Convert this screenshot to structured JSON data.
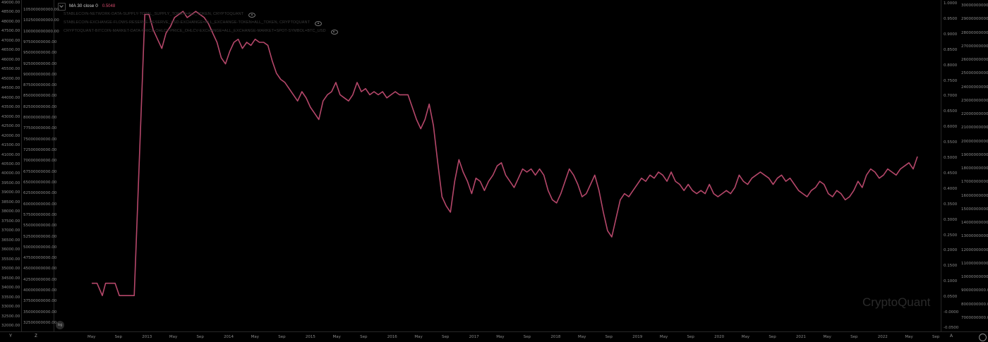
{
  "legend": {
    "main_label": "MA 30 close 0",
    "main_value": "0.5048",
    "series_2": "STABLECOIN-NETWORK-DATA-SUPPLY-TOTAL_SUPPLY_TOKEN=ALL_TOKEN, CRYPTOQUANT",
    "series_3": "STABLECOIN-EXCHANGE-FLOWS-RESERVE-RESERVE_USD-EXCHANGE=ALL_EXCHANGE-TOKEN=ALL_TOKEN, CRYPTOQUANT",
    "series_4": "CRYPTOQUANT-BITCOIN-MARKET-DATA-PRICE-OHLCV-PRICE_OHLCV-EXCHANGE=ALL_EXCHANGE-MARKET=SPOT-SYMBOL=BTC_USD"
  },
  "watermark": "CryptoQuant",
  "bottom": {
    "left_btn": "Y",
    "mid_btn": "Z",
    "right_btn": "A"
  },
  "scale_button": "log",
  "colors": {
    "line": "#b5476a",
    "background": "#000000",
    "legend_value": "#d04a6a"
  },
  "chart_data": {
    "type": "line",
    "title": "",
    "ylim": [
      -0.05,
      1.0
    ],
    "x_tick_labels": [
      "May",
      "Sep",
      "2013",
      "May",
      "Sep",
      "2014",
      "May",
      "Sep",
      "2015",
      "May",
      "Sep",
      "2016",
      "May",
      "Sep",
      "2017",
      "May",
      "Sep",
      "2018",
      "May",
      "Sep",
      "2019",
      "May",
      "Sep",
      "2020",
      "May",
      "Sep",
      "2021",
      "May",
      "Sep",
      "2022",
      "May",
      "Sep"
    ],
    "y_left1_ticks": [
      "49000.00",
      "48500.00",
      "48000.00",
      "47500.00",
      "47000.00",
      "46500.00",
      "46000.00",
      "45500.00",
      "45000.00",
      "44500.00",
      "44000.00",
      "43500.00",
      "43000.00",
      "42500.00",
      "42000.00",
      "41500.00",
      "41000.00",
      "40500.00",
      "40000.00",
      "39500.00",
      "39000.00",
      "38500.00",
      "38000.00",
      "37500.00",
      "37000.00",
      "36500.00",
      "36000.00",
      "35500.00",
      "35000.00",
      "34500.00",
      "34000.00",
      "33500.00",
      "33000.00",
      "32500.00",
      "32000.00"
    ],
    "y_left2_ticks": [
      "105000000000.00",
      "102500000000.00",
      "100000000000.00",
      "97500000000.00",
      "95000000000.00",
      "92500000000.00",
      "90000000000.00",
      "87500000000.00",
      "85000000000.00",
      "82500000000.00",
      "80000000000.00",
      "77500000000.00",
      "75000000000.00",
      "72500000000.00",
      "70000000000.00",
      "67500000000.00",
      "65000000000.00",
      "62500000000.00",
      "60000000000.00",
      "57500000000.00",
      "55000000000.00",
      "52500000000.00",
      "50000000000.00",
      "47500000000.00",
      "45000000000.00",
      "42500000000.00",
      "40000000000.00",
      "37500000000.00",
      "35000000000.00",
      "32500000000.00"
    ],
    "y_right1_ticks": [
      "1.0000",
      "0.9500",
      "0.9000",
      "0.8500",
      "0.8000",
      "0.7500",
      "0.7000",
      "0.6500",
      "0.6000",
      "0.5500",
      "0.5000",
      "0.4500",
      "0.4000",
      "0.3500",
      "0.3000",
      "0.2500",
      "0.2000",
      "0.1500",
      "0.1000",
      "0.0500",
      "-0.0000",
      "-0.0500"
    ],
    "y_right2_ticks": [
      "30000000000.00",
      "29000000000.00",
      "28000000000.00",
      "27000000000.00",
      "26000000000.00",
      "25000000000.00",
      "24000000000.00",
      "23000000000.00",
      "22000000000.00",
      "21000000000.00",
      "20000000000.00",
      "19000000000.00",
      "18000000000.00",
      "17000000000.00",
      "16000000000.00",
      "15000000000.00",
      "14000000000.00",
      "13000000000.00",
      "12000000000.00",
      "11000000000.00",
      "10000000000.00",
      "9000000000.00",
      "8000000000.00",
      "7000000000.00"
    ],
    "series": [
      {
        "name": "MA 30 close 0",
        "points": [
          [
            0,
            0.09
          ],
          [
            0.5,
            0.09
          ],
          [
            1,
            0.05
          ],
          [
            1.3,
            0.09
          ],
          [
            1.8,
            0.09
          ],
          [
            2.2,
            0.09
          ],
          [
            2.6,
            0.05
          ],
          [
            3.2,
            0.05
          ],
          [
            4,
            0.05
          ],
          [
            5,
            0.96
          ],
          [
            5.4,
            0.96
          ],
          [
            5.8,
            0.91
          ],
          [
            6.2,
            0.88
          ],
          [
            6.6,
            0.85
          ],
          [
            7,
            0.9
          ],
          [
            7.4,
            0.92
          ],
          [
            7.8,
            0.95
          ],
          [
            8.2,
            0.96
          ],
          [
            8.6,
            0.97
          ],
          [
            9,
            0.95
          ],
          [
            9.4,
            0.96
          ],
          [
            9.8,
            0.97
          ],
          [
            10.2,
            0.96
          ],
          [
            10.6,
            0.95
          ],
          [
            11,
            0.93
          ],
          [
            11.4,
            0.9
          ],
          [
            11.8,
            0.87
          ],
          [
            12.2,
            0.82
          ],
          [
            12.6,
            0.8
          ],
          [
            13,
            0.84
          ],
          [
            13.4,
            0.87
          ],
          [
            13.8,
            0.88
          ],
          [
            14.2,
            0.85
          ],
          [
            14.6,
            0.87
          ],
          [
            15,
            0.86
          ],
          [
            15.4,
            0.88
          ],
          [
            15.8,
            0.87
          ],
          [
            16.2,
            0.87
          ],
          [
            16.6,
            0.86
          ],
          [
            17,
            0.81
          ],
          [
            17.4,
            0.77
          ],
          [
            17.8,
            0.75
          ],
          [
            18.2,
            0.74
          ],
          [
            18.6,
            0.72
          ],
          [
            19,
            0.7
          ],
          [
            19.4,
            0.68
          ],
          [
            19.8,
            0.71
          ],
          [
            20.2,
            0.69
          ],
          [
            20.6,
            0.66
          ],
          [
            21,
            0.64
          ],
          [
            21.4,
            0.62
          ],
          [
            21.8,
            0.68
          ],
          [
            22.2,
            0.7
          ],
          [
            22.6,
            0.71
          ],
          [
            23,
            0.74
          ],
          [
            23.4,
            0.7
          ],
          [
            23.8,
            0.69
          ],
          [
            24.2,
            0.68
          ],
          [
            24.6,
            0.7
          ],
          [
            25,
            0.74
          ],
          [
            25.4,
            0.71
          ],
          [
            25.8,
            0.72
          ],
          [
            26.2,
            0.7
          ],
          [
            26.6,
            0.71
          ],
          [
            27,
            0.7
          ],
          [
            27.4,
            0.71
          ],
          [
            27.8,
            0.69
          ],
          [
            28.2,
            0.7
          ],
          [
            28.6,
            0.71
          ],
          [
            29,
            0.7
          ],
          [
            29.4,
            0.7
          ],
          [
            29.8,
            0.7
          ],
          [
            30.2,
            0.66
          ],
          [
            30.6,
            0.62
          ],
          [
            31,
            0.59
          ],
          [
            31.4,
            0.62
          ],
          [
            31.8,
            0.67
          ],
          [
            32.2,
            0.6
          ],
          [
            32.6,
            0.48
          ],
          [
            33,
            0.37
          ],
          [
            33.4,
            0.34
          ],
          [
            33.8,
            0.32
          ],
          [
            34.2,
            0.42
          ],
          [
            34.6,
            0.49
          ],
          [
            35,
            0.45
          ],
          [
            35.4,
            0.42
          ],
          [
            35.8,
            0.38
          ],
          [
            36.2,
            0.43
          ],
          [
            36.6,
            0.42
          ],
          [
            37,
            0.39
          ],
          [
            37.4,
            0.42
          ],
          [
            37.8,
            0.44
          ],
          [
            38.2,
            0.47
          ],
          [
            38.6,
            0.48
          ],
          [
            39,
            0.44
          ],
          [
            39.4,
            0.42
          ],
          [
            39.8,
            0.4
          ],
          [
            40.2,
            0.43
          ],
          [
            40.6,
            0.46
          ],
          [
            41,
            0.45
          ],
          [
            41.4,
            0.46
          ],
          [
            41.8,
            0.44
          ],
          [
            42.2,
            0.46
          ],
          [
            42.6,
            0.44
          ],
          [
            43,
            0.39
          ],
          [
            43.4,
            0.36
          ],
          [
            43.8,
            0.35
          ],
          [
            44.2,
            0.38
          ],
          [
            44.6,
            0.42
          ],
          [
            45,
            0.46
          ],
          [
            45.4,
            0.44
          ],
          [
            45.8,
            0.41
          ],
          [
            46.2,
            0.37
          ],
          [
            46.6,
            0.38
          ],
          [
            47,
            0.41
          ],
          [
            47.4,
            0.44
          ],
          [
            47.8,
            0.39
          ],
          [
            48.2,
            0.32
          ],
          [
            48.6,
            0.26
          ],
          [
            49,
            0.24
          ],
          [
            49.4,
            0.3
          ],
          [
            49.8,
            0.36
          ],
          [
            50.2,
            0.38
          ],
          [
            50.6,
            0.37
          ],
          [
            51,
            0.39
          ],
          [
            51.4,
            0.41
          ],
          [
            51.8,
            0.43
          ],
          [
            52.2,
            0.42
          ],
          [
            52.6,
            0.44
          ],
          [
            53,
            0.43
          ],
          [
            53.4,
            0.45
          ],
          [
            53.8,
            0.44
          ],
          [
            54.2,
            0.42
          ],
          [
            54.6,
            0.45
          ],
          [
            55,
            0.42
          ],
          [
            55.4,
            0.41
          ],
          [
            55.8,
            0.39
          ],
          [
            56.2,
            0.41
          ],
          [
            56.6,
            0.39
          ],
          [
            57,
            0.38
          ],
          [
            57.4,
            0.39
          ],
          [
            57.8,
            0.38
          ],
          [
            58.2,
            0.41
          ],
          [
            58.6,
            0.38
          ],
          [
            59,
            0.37
          ],
          [
            59.4,
            0.38
          ],
          [
            59.8,
            0.39
          ],
          [
            60.2,
            0.38
          ],
          [
            60.6,
            0.4
          ],
          [
            61,
            0.44
          ],
          [
            61.4,
            0.42
          ],
          [
            61.8,
            0.41
          ],
          [
            62.2,
            0.43
          ],
          [
            62.6,
            0.44
          ],
          [
            63,
            0.45
          ],
          [
            63.4,
            0.44
          ],
          [
            63.8,
            0.43
          ],
          [
            64.2,
            0.41
          ],
          [
            64.6,
            0.43
          ],
          [
            65,
            0.44
          ],
          [
            65.4,
            0.42
          ],
          [
            65.8,
            0.43
          ],
          [
            66.2,
            0.41
          ],
          [
            66.6,
            0.39
          ],
          [
            67,
            0.38
          ],
          [
            67.4,
            0.37
          ],
          [
            67.8,
            0.39
          ],
          [
            68.2,
            0.4
          ],
          [
            68.6,
            0.42
          ],
          [
            69,
            0.41
          ],
          [
            69.4,
            0.38
          ],
          [
            69.8,
            0.37
          ],
          [
            70.2,
            0.39
          ],
          [
            70.6,
            0.38
          ],
          [
            71,
            0.36
          ],
          [
            71.4,
            0.37
          ],
          [
            71.8,
            0.39
          ],
          [
            72.2,
            0.42
          ],
          [
            72.6,
            0.4
          ],
          [
            73,
            0.44
          ],
          [
            73.4,
            0.46
          ],
          [
            73.8,
            0.45
          ],
          [
            74.2,
            0.43
          ],
          [
            74.6,
            0.44
          ],
          [
            75,
            0.46
          ],
          [
            75.4,
            0.45
          ],
          [
            75.8,
            0.44
          ],
          [
            76.2,
            0.46
          ],
          [
            76.6,
            0.47
          ],
          [
            77,
            0.48
          ],
          [
            77.4,
            0.46
          ],
          [
            77.8,
            0.5
          ]
        ]
      }
    ]
  }
}
